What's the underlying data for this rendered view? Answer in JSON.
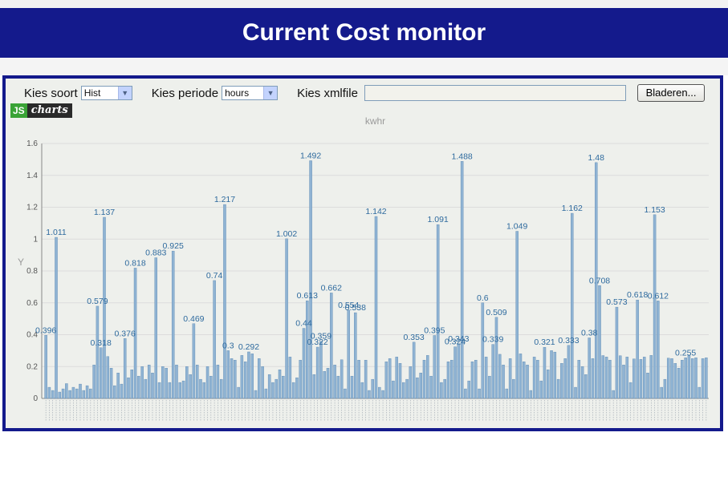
{
  "page": {
    "title": "Current Cost monitor"
  },
  "controls": {
    "soort_label": "Kies soort",
    "soort_value": "Hist",
    "periode_label": "Kies periode",
    "periode_value": "hours",
    "xmlfile_label": "Kies xmlfile",
    "browse_label": "Bladeren...",
    "select_arrow_icon": "chevron-down-icon"
  },
  "logo": {
    "js": "JS",
    "charts": "charts"
  },
  "colors": {
    "banner": "#141a8c",
    "bar": "#8fb3d3",
    "bar_edge": "#5d89b2",
    "label": "#2e6a9e"
  },
  "chart_data": {
    "type": "bar",
    "title": "kwhr",
    "ylabel": "Y",
    "ylim": [
      0,
      1.6
    ],
    "yticks": [
      0,
      0.2,
      0.4,
      0.6,
      0.8,
      1,
      1.2,
      1.4,
      1.6
    ],
    "grid": true,
    "values": [
      0.396,
      0.07,
      0.05,
      1.011,
      0.04,
      0.06,
      0.093,
      0.05,
      0.07,
      0.06,
      0.09,
      0.05,
      0.08,
      0.06,
      0.21,
      0.579,
      0.318,
      1.137,
      0.263,
      0.19,
      0.08,
      0.16,
      0.09,
      0.376,
      0.13,
      0.18,
      0.818,
      0.14,
      0.2,
      0.12,
      0.21,
      0.16,
      0.883,
      0.1,
      0.2,
      0.19,
      0.1,
      0.925,
      0.21,
      0.1,
      0.11,
      0.2,
      0.15,
      0.469,
      0.21,
      0.12,
      0.1,
      0.2,
      0.14,
      0.74,
      0.21,
      0.12,
      1.217,
      0.3,
      0.25,
      0.24,
      0.07,
      0.27,
      0.23,
      0.292,
      0.28,
      0.05,
      0.25,
      0.2,
      0.06,
      0.15,
      0.1,
      0.12,
      0.18,
      0.14,
      1.002,
      0.26,
      0.1,
      0.13,
      0.24,
      0.44,
      0.613,
      1.492,
      0.15,
      0.322,
      0.359,
      0.17,
      0.19,
      0.662,
      0.21,
      0.14,
      0.243,
      0.06,
      0.554,
      0.14,
      0.538,
      0.24,
      0.1,
      0.24,
      0.05,
      0.12,
      1.142,
      0.07,
      0.05,
      0.23,
      0.25,
      0.11,
      0.26,
      0.22,
      0.1,
      0.12,
      0.2,
      0.353,
      0.13,
      0.16,
      0.24,
      0.27,
      0.14,
      0.395,
      1.091,
      0.1,
      0.12,
      0.23,
      0.24,
      0.324,
      0.343,
      1.488,
      0.06,
      0.11,
      0.23,
      0.24,
      0.06,
      0.6,
      0.26,
      0.14,
      0.339,
      0.509,
      0.277,
      0.21,
      0.06,
      0.25,
      0.12,
      1.049,
      0.28,
      0.23,
      0.21,
      0.05,
      0.26,
      0.24,
      0.11,
      0.321,
      0.18,
      0.3,
      0.291,
      0.12,
      0.22,
      0.25,
      0.333,
      1.162,
      0.07,
      0.24,
      0.2,
      0.15,
      0.38,
      0.25,
      1.48,
      0.708,
      0.269,
      0.26,
      0.24,
      0.05,
      0.573,
      0.268,
      0.21,
      0.26,
      0.1,
      0.248,
      0.618,
      0.245,
      0.26,
      0.16,
      0.27,
      1.153,
      0.612,
      0.07,
      0.12,
      0.253,
      0.25,
      0.22,
      0.19,
      0.24,
      0.255,
      0.27,
      0.25,
      0.255,
      0.07,
      0.25,
      0.255
    ],
    "labeled_values": [
      0.396,
      1.011,
      0.579,
      0.318,
      1.137,
      0.376,
      0.818,
      0.883,
      0.925,
      0.469,
      0.74,
      1.217,
      0.3,
      0.292,
      1.002,
      0.44,
      0.613,
      1.492,
      0.322,
      0.359,
      0.662,
      0.554,
      0.538,
      1.142,
      0.353,
      0.395,
      1.091,
      0.324,
      0.343,
      1.488,
      0.6,
      0.339,
      0.509,
      1.049,
      0.321,
      0.333,
      1.162,
      0.38,
      1.48,
      0.708,
      0.573,
      0.618,
      1.153,
      0.612,
      0.255
    ]
  }
}
